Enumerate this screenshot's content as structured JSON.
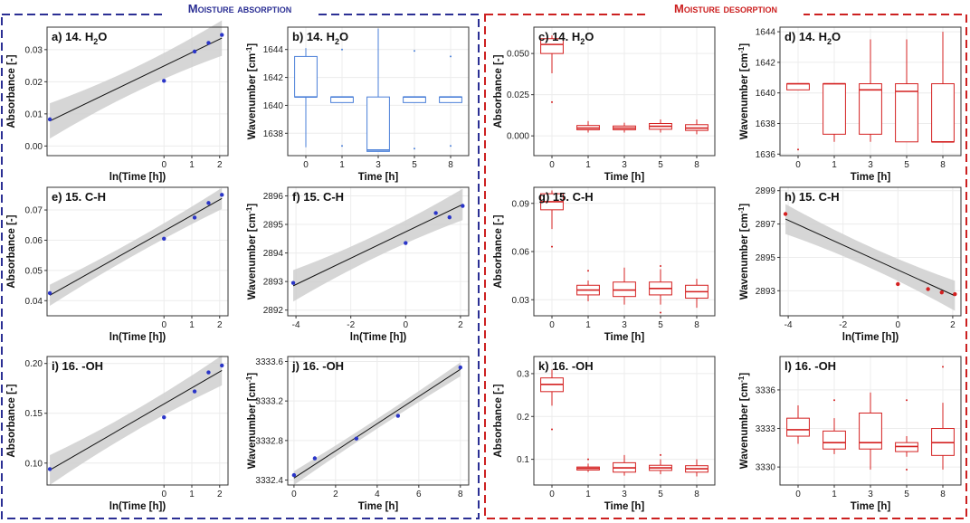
{
  "sections": {
    "absorption": {
      "title": "Moisture absorption",
      "color": "#2b2f94"
    },
    "desorption": {
      "title": "Moisture desorption",
      "color": "#cc2020"
    }
  },
  "colors": {
    "blue_point": "#2a35c8",
    "blue_box": "#4a7fd8",
    "red": "#d42020",
    "band": "#cfcfcf",
    "grid": "#ececec"
  },
  "chart_data": [
    {
      "id": "a",
      "type": "scatter",
      "title": "a) 14. H",
      "sub": "2",
      "tail": "O",
      "xlabel": "ln(Time [h])",
      "ylabel": "Absorbance [-]",
      "xlim": [
        -4.2,
        2.3
      ],
      "ylim": [
        -0.003,
        0.037
      ],
      "xticks": [
        {
          "v": 0,
          "t": "0"
        },
        {
          "v": 1,
          "t": "1"
        },
        {
          "v": 2,
          "t": "2"
        }
      ],
      "yticks": [
        {
          "v": 0,
          "t": "0.00"
        },
        {
          "v": 0.01,
          "t": "0.01"
        },
        {
          "v": 0.02,
          "t": "0.02"
        },
        {
          "v": 0.03,
          "t": "0.03"
        }
      ],
      "x": [
        -4.1,
        0,
        1.1,
        1.6,
        2.08
      ],
      "y": [
        0.0083,
        0.0203,
        0.0294,
        0.0321,
        0.0346
      ],
      "fit": {
        "x0": -4.1,
        "y0": 0.0078,
        "x1": 2.08,
        "y1": 0.0336,
        "band": 0.0055
      },
      "color": "blue"
    },
    {
      "id": "b",
      "type": "box",
      "title": "b) 14. H",
      "sub": "2",
      "tail": "O",
      "xlabel": "Time [h]",
      "ylabel": "Wavenumber [cm-1]",
      "categories": [
        "0",
        "1",
        "3",
        "5",
        "8"
      ],
      "ylim": [
        1636.4,
        1645.6
      ],
      "yticks": [
        {
          "v": 1638,
          "t": "1638"
        },
        {
          "v": 1640,
          "t": "1640"
        },
        {
          "v": 1642,
          "t": "1642"
        },
        {
          "v": 1644,
          "t": "1644"
        }
      ],
      "boxes": [
        [
          1637,
          1640.6,
          1640.6,
          1643.5,
          1644.1
        ],
        [
          1640.2,
          1640.2,
          1640.6,
          1640.6,
          1640.6
        ],
        [
          1636.7,
          1636.7,
          1636.8,
          1640.6,
          1645.5
        ],
        [
          1640.2,
          1640.2,
          1640.6,
          1640.6,
          1640.6
        ],
        [
          1640.2,
          1640.2,
          1640.6,
          1640.6,
          1640.6
        ]
      ],
      "outliers": [
        [],
        [
          1644,
          1637.1
        ],
        [],
        [
          1643.9,
          1636.9
        ],
        [
          1643.5,
          1637.1
        ]
      ],
      "color": "blue"
    },
    {
      "id": "c",
      "type": "box",
      "title": "c) 14. H",
      "sub": "2",
      "tail": "O",
      "xlabel": "Time [h]",
      "ylabel": "Absorbance [-]",
      "categories": [
        "0",
        "1",
        "3",
        "5",
        "8"
      ],
      "ylim": [
        -0.012,
        0.066
      ],
      "yticks": [
        {
          "v": 0,
          "t": "0.000"
        },
        {
          "v": 0.025,
          "t": "0.025"
        },
        {
          "v": 0.05,
          "t": "0.050"
        }
      ],
      "boxes": [
        [
          0.038,
          0.05,
          0.0555,
          0.059,
          0.061
        ],
        [
          0.002,
          0.0037,
          0.0047,
          0.0063,
          0.009
        ],
        [
          0.002,
          0.0037,
          0.0047,
          0.006,
          0.008
        ],
        [
          0.002,
          0.004,
          0.0058,
          0.0075,
          0.01
        ],
        [
          0.001,
          0.0033,
          0.0047,
          0.0068,
          0.01
        ]
      ],
      "outliers": [
        [
          0.0205
        ],
        [],
        [],
        [],
        []
      ],
      "color": "red"
    },
    {
      "id": "d",
      "type": "box",
      "title": "d) 14. H",
      "sub": "2",
      "tail": "O",
      "xlabel": "Time [h]",
      "ylabel": "Wavenumber [cm-1]",
      "categories": [
        "0",
        "1",
        "3",
        "5",
        "8"
      ],
      "ylim": [
        1635.9,
        1644.3
      ],
      "yticks": [
        {
          "v": 1636,
          "t": "1636"
        },
        {
          "v": 1638,
          "t": "1638"
        },
        {
          "v": 1640,
          "t": "1640"
        },
        {
          "v": 1642,
          "t": "1642"
        },
        {
          "v": 1644,
          "t": "1644"
        }
      ],
      "boxes": [
        [
          1640.2,
          1640.2,
          1640.6,
          1640.6,
          1640.6
        ],
        [
          1636.8,
          1637.3,
          1640.6,
          1640.6,
          1640.6
        ],
        [
          1636.8,
          1637.3,
          1640.2,
          1640.6,
          1643.5
        ],
        [
          1636.8,
          1636.8,
          1640.1,
          1640.6,
          1643.5
        ],
        [
          1636.8,
          1636.8,
          1636.8,
          1640.6,
          1644
        ]
      ],
      "outliers": [
        [
          1636.3
        ],
        [],
        [],
        [],
        []
      ],
      "color": "red"
    },
    {
      "id": "e",
      "type": "scatter",
      "title": "e) 15. C-H",
      "xlabel": "ln(Time [h])",
      "ylabel": "Absorbance [-]",
      "xlim": [
        -4.2,
        2.3
      ],
      "ylim": [
        0.035,
        0.0775
      ],
      "xticks": [
        {
          "v": 0,
          "t": "0"
        },
        {
          "v": 1,
          "t": "1"
        },
        {
          "v": 2,
          "t": "2"
        }
      ],
      "yticks": [
        {
          "v": 0.04,
          "t": "0.04"
        },
        {
          "v": 0.05,
          "t": "0.05"
        },
        {
          "v": 0.06,
          "t": "0.06"
        },
        {
          "v": 0.07,
          "t": "0.07"
        }
      ],
      "x": [
        -4.1,
        0,
        1.1,
        1.6,
        2.08
      ],
      "y": [
        0.0425,
        0.0605,
        0.0675,
        0.0723,
        0.075
      ],
      "fit": {
        "x0": -4.1,
        "y0": 0.0418,
        "x1": 2.08,
        "y1": 0.0738,
        "band": 0.0035
      },
      "color": "blue"
    },
    {
      "id": "f",
      "type": "scatter",
      "title": "f) 15. C-H",
      "xlabel": "ln(Time [h])",
      "ylabel": "Wavenumber [cm-1]",
      "xlim": [
        -4.3,
        2.3
      ],
      "ylim": [
        2891.8,
        2896.3
      ],
      "xticks": [
        {
          "v": -4,
          "t": "-4"
        },
        {
          "v": -2,
          "t": "-2"
        },
        {
          "v": 0,
          "t": "0"
        },
        {
          "v": 2,
          "t": "2"
        }
      ],
      "yticks": [
        {
          "v": 2892,
          "t": "2892"
        },
        {
          "v": 2893,
          "t": "2893"
        },
        {
          "v": 2894,
          "t": "2894"
        },
        {
          "v": 2895,
          "t": "2895"
        },
        {
          "v": 2896,
          "t": "2896"
        }
      ],
      "x": [
        -4.1,
        0,
        1.1,
        1.6,
        2.08
      ],
      "y": [
        2892.95,
        2894.35,
        2895.4,
        2895.25,
        2895.65
      ],
      "fit": {
        "x0": -4.1,
        "y0": 2892.85,
        "x1": 2.08,
        "y1": 2895.7,
        "band": 0.55
      },
      "color": "blue"
    },
    {
      "id": "g",
      "type": "box",
      "title": "g) 15. C-H",
      "xlabel": "Time [h]",
      "ylabel": "Absorbance [-]",
      "categories": [
        "0",
        "1",
        "3",
        "5",
        "8"
      ],
      "ylim": [
        0.02,
        0.1
      ],
      "yticks": [
        {
          "v": 0.03,
          "t": "0.03"
        },
        {
          "v": 0.06,
          "t": "0.06"
        },
        {
          "v": 0.09,
          "t": "0.09"
        }
      ],
      "boxes": [
        [
          0.074,
          0.086,
          0.091,
          0.096,
          0.098
        ],
        [
          0.029,
          0.033,
          0.036,
          0.039,
          0.042
        ],
        [
          0.027,
          0.032,
          0.036,
          0.041,
          0.05
        ],
        [
          0.027,
          0.033,
          0.037,
          0.041,
          0.049
        ],
        [
          0.025,
          0.031,
          0.035,
          0.039,
          0.043
        ]
      ],
      "outliers": [
        [
          0.063
        ],
        [
          0.048
        ],
        [],
        [
          0.051,
          0.022
        ],
        []
      ],
      "color": "red"
    },
    {
      "id": "h",
      "type": "scatter",
      "title": "h) 15. C-H",
      "xlabel": "ln(Time [h])",
      "ylabel": "Wavenumber [cm-1]",
      "xlim": [
        -4.3,
        2.3
      ],
      "ylim": [
        2891.5,
        2899.2
      ],
      "xticks": [
        {
          "v": -4,
          "t": "-4"
        },
        {
          "v": -2,
          "t": "-2"
        },
        {
          "v": 0,
          "t": "0"
        },
        {
          "v": 2,
          "t": "2"
        }
      ],
      "yticks": [
        {
          "v": 2893,
          "t": "2893"
        },
        {
          "v": 2895,
          "t": "2895"
        },
        {
          "v": 2897,
          "t": "2897"
        },
        {
          "v": 2899,
          "t": "2899"
        }
      ],
      "x": [
        -4.1,
        0,
        1.1,
        1.6,
        2.08
      ],
      "y": [
        2897.6,
        2893.4,
        2893.1,
        2892.9,
        2892.8
      ],
      "fit": {
        "x0": -4.1,
        "y0": 2897.3,
        "x1": 2.08,
        "y1": 2892.7,
        "band": 0.9
      },
      "color": "red"
    },
    {
      "id": "i",
      "type": "scatter",
      "title": "i) 16. -OH",
      "xlabel": "ln(Time [h])",
      "ylabel": "Absorbance [-]",
      "xlim": [
        -4.2,
        2.3
      ],
      "ylim": [
        0.078,
        0.207
      ],
      "xticks": [
        {
          "v": 0,
          "t": "0"
        },
        {
          "v": 1,
          "t": "1"
        },
        {
          "v": 2,
          "t": "2"
        }
      ],
      "yticks": [
        {
          "v": 0.1,
          "t": "0.10"
        },
        {
          "v": 0.15,
          "t": "0.15"
        },
        {
          "v": 0.2,
          "t": "0.20"
        }
      ],
      "x": [
        -4.1,
        0,
        1.1,
        1.6,
        2.08
      ],
      "y": [
        0.094,
        0.146,
        0.172,
        0.191,
        0.198
      ],
      "fit": {
        "x0": -4.1,
        "y0": 0.093,
        "x1": 2.08,
        "y1": 0.193,
        "band": 0.015
      },
      "color": "blue"
    },
    {
      "id": "j",
      "type": "scatter",
      "title": "j) 16. -OH",
      "xlabel": "Time [h]",
      "ylabel": "Wavenumber [cm-1]",
      "xlim": [
        -0.3,
        8.4
      ],
      "ylim": [
        3332.35,
        3333.65
      ],
      "xticks": [
        {
          "v": 0,
          "t": "0"
        },
        {
          "v": 2,
          "t": "2"
        },
        {
          "v": 4,
          "t": "4"
        },
        {
          "v": 6,
          "t": "6"
        },
        {
          "v": 8,
          "t": "8"
        }
      ],
      "yticks": [
        {
          "v": 3332.4,
          "t": "3332.4"
        },
        {
          "v": 3332.8,
          "t": "3332.8"
        },
        {
          "v": 3333.2,
          "t": "3333.2"
        },
        {
          "v": 3333.6,
          "t": "3333.6"
        }
      ],
      "x": [
        0,
        1,
        3,
        5,
        8
      ],
      "y": [
        3332.45,
        3332.62,
        3332.82,
        3333.05,
        3333.54
      ],
      "fit": {
        "x0": 0,
        "y0": 3332.42,
        "x1": 8,
        "y1": 3333.52,
        "band": 0.07
      },
      "color": "blue"
    },
    {
      "id": "k",
      "type": "box",
      "title": "k) 16. -OH",
      "xlabel": "Time [h]",
      "ylabel": "Absorbance [-]",
      "categories": [
        "0",
        "1",
        "3",
        "5",
        "8"
      ],
      "ylim": [
        0.04,
        0.34
      ],
      "yticks": [
        {
          "v": 0.1,
          "t": "0.1"
        },
        {
          "v": 0.2,
          "t": "0.2"
        },
        {
          "v": 0.3,
          "t": "0.3"
        }
      ],
      "boxes": [
        [
          0.225,
          0.258,
          0.275,
          0.29,
          0.31
        ],
        [
          0.07,
          0.075,
          0.079,
          0.082,
          0.09
        ],
        [
          0.062,
          0.07,
          0.08,
          0.092,
          0.11
        ],
        [
          0.065,
          0.074,
          0.08,
          0.086,
          0.1
        ],
        [
          0.06,
          0.07,
          0.078,
          0.085,
          0.1
        ]
      ],
      "outliers": [
        [
          0.17
        ],
        [
          0.1
        ],
        [],
        [
          0.11
        ],
        []
      ],
      "color": "red"
    },
    {
      "id": "l",
      "type": "box",
      "title": "l) 16. -OH",
      "xlabel": "Time [h]",
      "ylabel": "Wavenumber [cm-1]",
      "categories": [
        "0",
        "1",
        "3",
        "5",
        "8"
      ],
      "ylim": [
        3328.6,
        3338.6
      ],
      "yticks": [
        {
          "v": 3330,
          "t": "3330"
        },
        {
          "v": 3333,
          "t": "3333"
        },
        {
          "v": 3336,
          "t": "3336"
        }
      ],
      "boxes": [
        [
          3331.8,
          3332.4,
          3332.9,
          3333.8,
          3334.8
        ],
        [
          3331,
          3331.4,
          3331.9,
          3332.8,
          3333.8
        ],
        [
          3329.8,
          3331.4,
          3331.9,
          3334.2,
          3335.8
        ],
        [
          3330.8,
          3331.2,
          3331.6,
          3331.9,
          3332.4
        ],
        [
          3329.8,
          3330.9,
          3331.9,
          3333,
          3335
        ]
      ],
      "outliers": [
        [],
        [
          3335.2
        ],
        [],
        [
          3335.2,
          3329.8
        ],
        [
          3337.8
        ]
      ],
      "color": "red"
    }
  ]
}
